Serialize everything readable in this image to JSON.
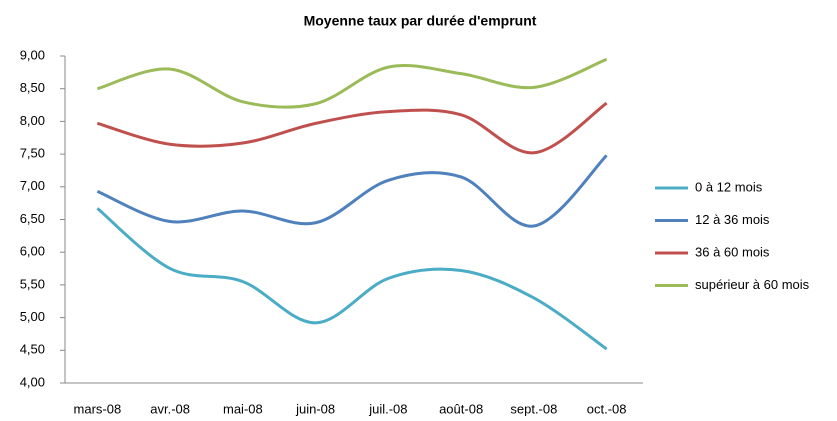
{
  "chart_data": {
    "type": "line",
    "title": "Moyenne taux par durée d'emprunt",
    "categories": [
      "mars-08",
      "avr.-08",
      "mai-08",
      "juin-08",
      "juil.-08",
      "août-08",
      "sept.-08",
      "oct.-08"
    ],
    "series": [
      {
        "name": "0 à 12 mois",
        "color": "#4bacc6",
        "values": [
          6.67,
          5.75,
          5.55,
          4.92,
          5.6,
          5.72,
          5.3,
          4.52
        ]
      },
      {
        "name": "12 à 36 mois",
        "color": "#4f81bd",
        "values": [
          6.93,
          6.47,
          6.63,
          6.45,
          7.1,
          7.15,
          6.4,
          7.48
        ]
      },
      {
        "name": "36 à 60 mois",
        "color": "#c0504d",
        "values": [
          7.97,
          7.65,
          7.67,
          7.97,
          8.15,
          8.1,
          7.52,
          8.28
        ]
      },
      {
        "name": "supérieur à 60 mois",
        "color": "#9bbb59",
        "values": [
          8.5,
          8.8,
          8.3,
          8.27,
          8.83,
          8.73,
          8.52,
          8.95
        ]
      }
    ],
    "ylim": [
      4,
      9
    ],
    "yticks": [
      {
        "value": 4,
        "label": "4,00"
      },
      {
        "value": 4.5,
        "label": "4,50"
      },
      {
        "value": 5,
        "label": "5,00"
      },
      {
        "value": 5.5,
        "label": "5,50"
      },
      {
        "value": 6,
        "label": "6,00"
      },
      {
        "value": 6.5,
        "label": "6,50"
      },
      {
        "value": 7,
        "label": "7,00"
      },
      {
        "value": 7.5,
        "label": "7,50"
      },
      {
        "value": 8,
        "label": "8,00"
      },
      {
        "value": 8.5,
        "label": "8,50"
      },
      {
        "value": 9,
        "label": "9,00"
      }
    ],
    "smooth": true,
    "legend": "right"
  }
}
